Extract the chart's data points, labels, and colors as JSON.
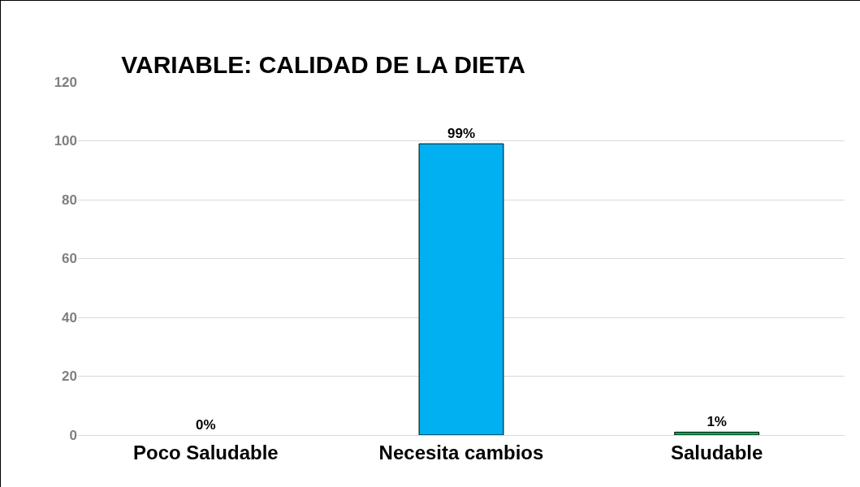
{
  "chart_data": {
    "type": "bar",
    "title": "VARIABLE: CALIDAD DE LA DIETA",
    "categories": [
      "Poco Saludable",
      "Necesita cambios",
      "Saludable"
    ],
    "values": [
      0,
      99,
      1
    ],
    "colors": [
      "#00b0f0",
      "#00b0f0",
      "#00b050"
    ],
    "value_labels": [
      "0%",
      "99%",
      "1%"
    ],
    "ylim": [
      0,
      120
    ],
    "yticks": [
      0,
      20,
      40,
      60,
      80,
      100,
      120
    ],
    "grid": "y",
    "legend": false
  }
}
